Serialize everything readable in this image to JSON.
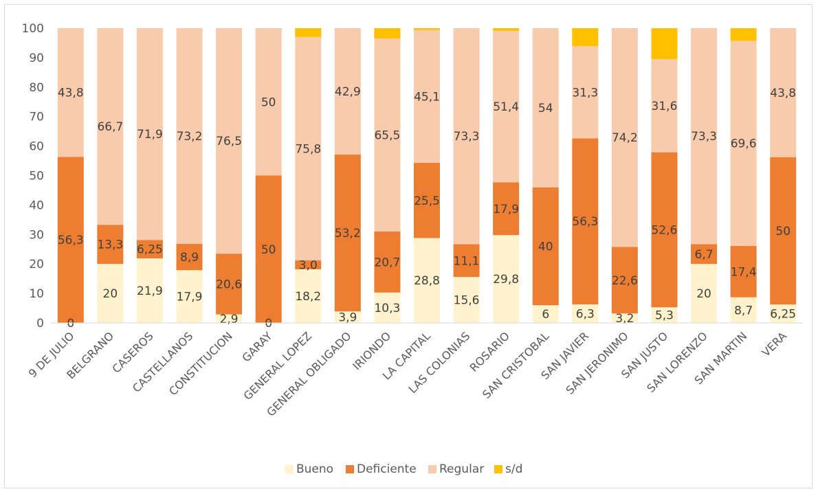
{
  "chart_data": {
    "type": "bar",
    "stacked": true,
    "title": "",
    "xlabel": "",
    "ylabel": "",
    "ylim": [
      0,
      100
    ],
    "yticks": [
      0,
      10,
      20,
      30,
      40,
      50,
      60,
      70,
      80,
      90,
      100
    ],
    "grid": false,
    "legend_position": "bottom",
    "categories": [
      "9 DE JULIO",
      "BELGRANO",
      "CASEROS",
      "CASTELLANOS",
      "CONSTITUCION",
      "GARAY",
      "GENERAL LOPEZ",
      "GENERAL OBLIGADO",
      "IRIONDO",
      "LA CAPITAL",
      "LAS COLONIAS",
      "ROSARIO",
      "SAN CRISTOBAL",
      "SAN JAVIER",
      "SAN JERONIMO",
      "SAN JUSTO",
      "SAN LORENZO",
      "SAN MARTIN",
      "VERA"
    ],
    "series": [
      {
        "name": "Bueno",
        "color": "#fff2cc",
        "values": [
          0,
          20,
          21.9,
          17.9,
          2.9,
          0,
          18.2,
          3.9,
          10.3,
          28.8,
          15.6,
          29.8,
          6,
          6.3,
          3.2,
          5.3,
          20,
          8.7,
          6.25
        ],
        "labels": [
          "0",
          "20",
          "21,9",
          "17,9",
          "2,9",
          "0",
          "18,2",
          "3,9",
          "10,3",
          "28,8",
          "15,6",
          "29,8",
          "6",
          "6,3",
          "3,2",
          "5,3",
          "20",
          "8,7",
          "6,25"
        ]
      },
      {
        "name": "Deficiente",
        "color": "#ed7d31",
        "values": [
          56.3,
          13.3,
          6.25,
          8.9,
          20.6,
          50,
          3.0,
          53.2,
          20.7,
          25.5,
          11.1,
          17.9,
          40,
          56.3,
          22.6,
          52.6,
          6.7,
          17.4,
          50
        ],
        "labels": [
          "56,3",
          "13,3",
          "6,25",
          "8,9",
          "20,6",
          "50",
          "3,0",
          "53,2",
          "20,7",
          "25,5",
          "11,1",
          "17,9",
          "40",
          "56,3",
          "22,6",
          "52,6",
          "6,7",
          "17,4",
          "50"
        ]
      },
      {
        "name": "Regular",
        "color": "#f8cbad",
        "values": [
          43.8,
          66.7,
          71.9,
          73.2,
          76.5,
          50,
          75.8,
          42.9,
          65.5,
          45.1,
          73.3,
          51.4,
          54,
          31.3,
          74.2,
          31.6,
          73.3,
          69.6,
          43.8
        ],
        "labels": [
          "43,8",
          "66,7",
          "71,9",
          "73,2",
          "76,5",
          "50",
          "75,8",
          "42,9",
          "65,5",
          "45,1",
          "73,3",
          "51,4",
          "54",
          "31,3",
          "74,2",
          "31,6",
          "73,3",
          "69,6",
          "43,8"
        ]
      },
      {
        "name": "s/d",
        "color": "#ffc000",
        "values": [
          0,
          0,
          0,
          0,
          0,
          0,
          3.0,
          0,
          3.5,
          0.6,
          0,
          0.9,
          0,
          6.1,
          0,
          10.5,
          0,
          4.3,
          0
        ],
        "labels": [
          "",
          "",
          "",
          "",
          "",
          "",
          "",
          "",
          "",
          "",
          "",
          "",
          "",
          "",
          "",
          "",
          "",
          "",
          ""
        ]
      }
    ]
  }
}
